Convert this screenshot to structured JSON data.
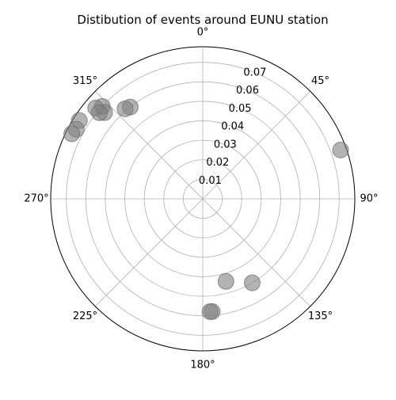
{
  "chart_data": {
    "type": "scatter",
    "projection": "polar",
    "title": "Distibution of events around EUNU station",
    "theta_direction": "clockwise",
    "theta_zero_location": "top",
    "theta_ticks": [
      0,
      45,
      90,
      135,
      180,
      225,
      270,
      315
    ],
    "theta_tick_labels": [
      "0°",
      "45°",
      "90°",
      "135°",
      "180°",
      "225°",
      "270°",
      "315°"
    ],
    "r_ticks": [
      0.01,
      0.02,
      0.03,
      0.04,
      0.05,
      0.06,
      0.07
    ],
    "r_tick_labels": [
      "0.01",
      "0.02",
      "0.03",
      "0.04",
      "0.05",
      "0.06",
      "0.07"
    ],
    "r_label_angle_deg": 22.5,
    "rlim": [
      0,
      0.078
    ],
    "grid": true,
    "marker_color": "#808080",
    "marker_alpha": 0.6,
    "series": [
      {
        "name": "events",
        "points": [
          {
            "theta": 70.5,
            "r": 0.075
          },
          {
            "theta": 321.7,
            "r": 0.06
          },
          {
            "theta": 319.2,
            "r": 0.061
          },
          {
            "theta": 312.6,
            "r": 0.07
          },
          {
            "theta": 311.3,
            "r": 0.067
          },
          {
            "theta": 310.3,
            "r": 0.072
          },
          {
            "theta": 309.8,
            "r": 0.069
          },
          {
            "theta": 302.4,
            "r": 0.075
          },
          {
            "theta": 298.8,
            "r": 0.074
          },
          {
            "theta": 296.4,
            "r": 0.075
          },
          {
            "theta": 149.5,
            "r": 0.05
          },
          {
            "theta": 164.3,
            "r": 0.044
          },
          {
            "theta": 175.2,
            "r": 0.058
          },
          {
            "theta": 176.3,
            "r": 0.058
          }
        ]
      }
    ]
  }
}
